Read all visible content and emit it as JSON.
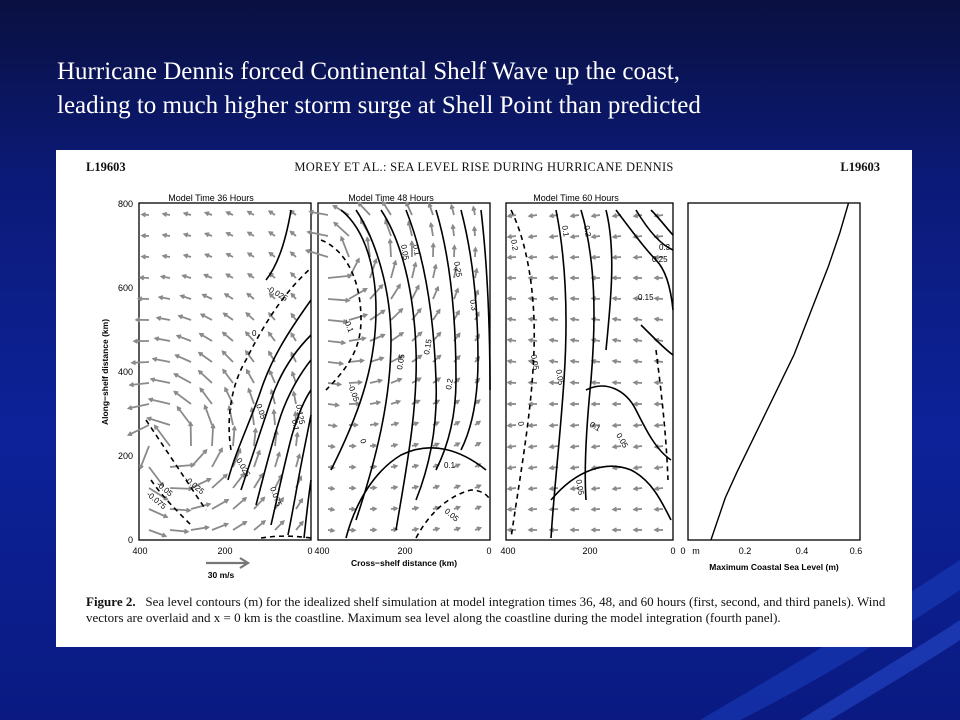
{
  "slide": {
    "title_line1": "Hurricane Dennis forced Continental Shelf Wave up the coast,",
    "title_line2": "leading to much higher storm surge at Shell Point than predicted"
  },
  "paper": {
    "header_left": "L19603",
    "header_center": "MOREY ET AL.: SEA LEVEL RISE DURING HURRICANE DENNIS",
    "header_right": "L19603"
  },
  "figure": {
    "panel_titles": [
      "Model Time 36 Hours",
      "Model Time 48 Hours",
      "Model Time 60 Hours"
    ],
    "y_axis_label": "Along−shelf distance (km)",
    "y_ticks": [
      "0",
      "200",
      "400",
      "600",
      "800"
    ],
    "x_ticks_contour": [
      "400",
      "200",
      "0"
    ],
    "x_axis_label": "Cross−shelf distance (km)",
    "x_ticks_max": [
      "0",
      "m",
      "0.2",
      "0.4",
      "0.6"
    ],
    "max_axis_label": "Maximum Coastal Sea Level (m)",
    "wind_scale_label": "30 m/s",
    "contour_labels_p1": [
      "-0.025",
      "0",
      "0.025",
      "0.05",
      "0.075",
      "-0.025",
      "0.1",
      "0.125",
      "-0.05",
      "-0.075"
    ],
    "contour_labels_p2": [
      "-0.1",
      "-0.05",
      "0",
      "0.05",
      "0.1",
      "0.15",
      "0.2",
      "0.25",
      "0.3",
      "0.05",
      "0.1",
      "0.05"
    ],
    "contour_labels_p3": [
      "0.2",
      "0.1",
      "0.2",
      "0.25",
      "0.3",
      "0.15",
      "0.05",
      "0.05",
      "0",
      "0.1",
      "0.05",
      "0.05"
    ]
  },
  "chart_data": {
    "type": "line",
    "title": "",
    "xlabel": "Maximum Coastal Sea Level (m)",
    "ylabel": "Along−shelf distance (km)",
    "xlim": [
      0,
      0.6
    ],
    "ylim": [
      0,
      800
    ],
    "series": [
      {
        "x": [
          0.08,
          0.1,
          0.13,
          0.17,
          0.22,
          0.27,
          0.32,
          0.37,
          0.41,
          0.45,
          0.49,
          0.53,
          0.56
        ],
        "y": [
          0,
          40,
          100,
          160,
          230,
          300,
          370,
          440,
          510,
          580,
          650,
          730,
          800
        ]
      }
    ]
  },
  "caption": {
    "label": "Figure 2.",
    "text": "Sea level contours (m) for the idealized shelf simulation at model integration times 36, 48, and 60 hours (first, second, and third panels). Wind vectors are overlaid and x = 0 km is the coastline. Maximum sea level along the coastline during the model integration (fourth panel)."
  }
}
